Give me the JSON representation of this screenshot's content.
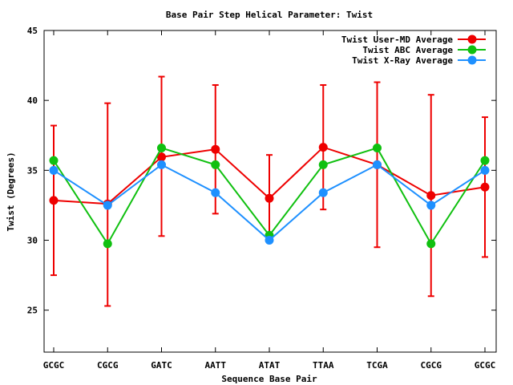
{
  "chart_data": {
    "type": "line",
    "title": "Base Pair Step Helical Parameter: Twist",
    "xlabel": "Sequence Base Pair",
    "ylabel": "Twist (Degrees)",
    "categories": [
      "GCGC",
      "CGCG",
      "GATC",
      "AATT",
      "ATAT",
      "TTAA",
      "TCGA",
      "CGCG",
      "GCGC"
    ],
    "ylim": [
      22,
      45
    ],
    "yticks": [
      25,
      30,
      35,
      40,
      45
    ],
    "grid": false,
    "legend_position": "top-right",
    "series": [
      {
        "name": "Twist User-MD Average",
        "color": "#ee0000",
        "values": [
          32.85,
          32.6,
          35.95,
          36.5,
          33.0,
          36.65,
          35.4,
          33.2,
          33.8
        ],
        "error_low": [
          27.5,
          25.3,
          30.3,
          31.9,
          29.9,
          32.2,
          29.5,
          26.0,
          28.8
        ],
        "error_high": [
          38.2,
          39.8,
          41.7,
          41.1,
          36.1,
          41.1,
          41.3,
          40.4,
          38.8
        ]
      },
      {
        "name": "Twist ABC Average",
        "color": "#10c010",
        "values": [
          35.7,
          29.75,
          36.6,
          35.4,
          30.35,
          35.4,
          36.6,
          29.75,
          35.7
        ]
      },
      {
        "name": "Twist X-Ray Average",
        "color": "#1e90ff",
        "values": [
          35.0,
          32.5,
          35.4,
          33.4,
          30.0,
          33.4,
          35.4,
          32.5,
          35.0
        ]
      }
    ]
  }
}
